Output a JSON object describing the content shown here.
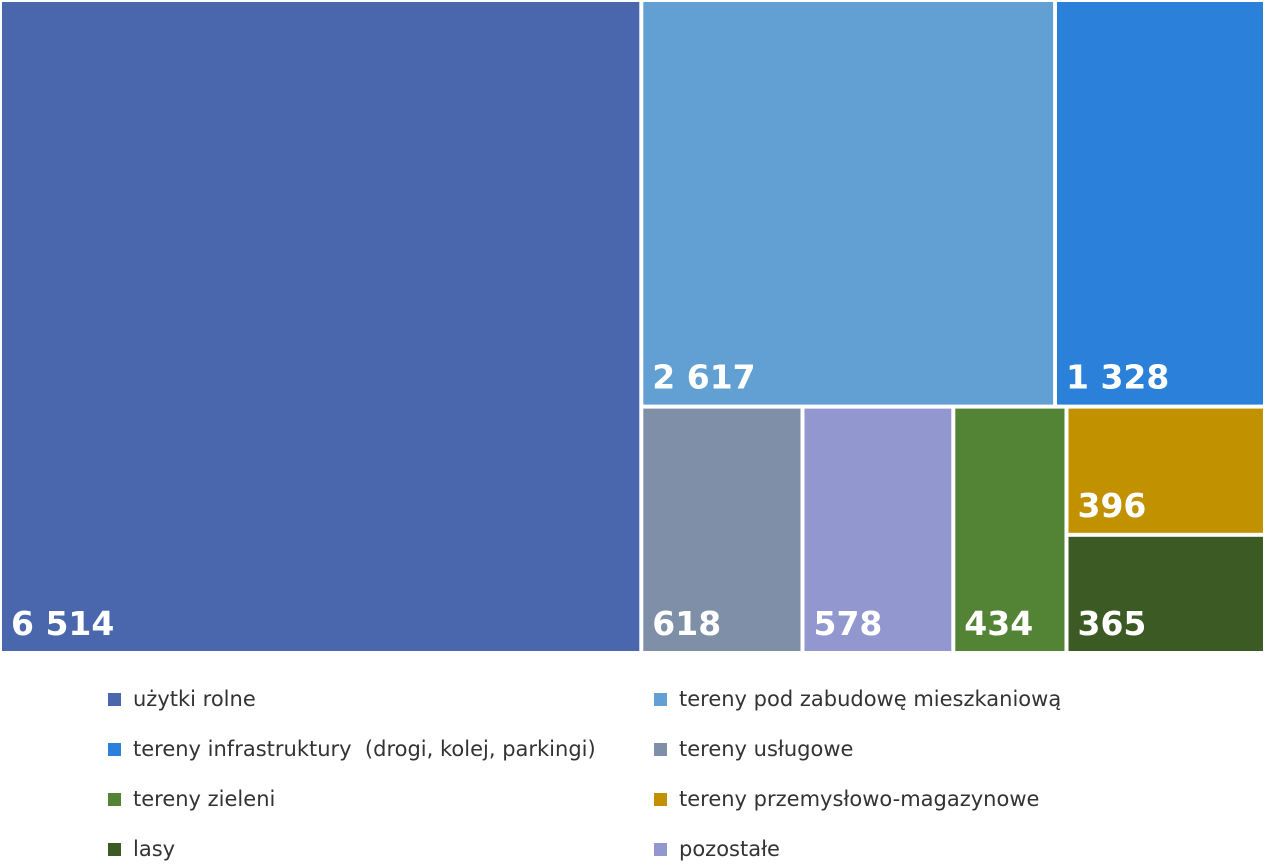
{
  "chart_data": {
    "type": "treemap",
    "series": [
      {
        "name": "użytki rolne",
        "value": 6514,
        "value_label": "6 514",
        "color": "#4A67AE"
      },
      {
        "name": "tereny pod zabudowę mieszkaniową",
        "value": 2617,
        "value_label": "2 617",
        "color": "#629FD3"
      },
      {
        "name": "tereny infrastruktury  (drogi, kolej, parkingi)",
        "value": 1328,
        "value_label": "1 328",
        "color": "#2B80D9"
      },
      {
        "name": "tereny usługowe",
        "value": 618,
        "value_label": "618",
        "color": "#7F8FA8"
      },
      {
        "name": "pozostałe",
        "value": 578,
        "value_label": "578",
        "color": "#9298CF"
      },
      {
        "name": "tereny zieleni",
        "value": 434,
        "value_label": "434",
        "color": "#538435"
      },
      {
        "name": "tereny przemysłowo-magazynowe",
        "value": 396,
        "value_label": "396",
        "color": "#C19100"
      },
      {
        "name": "lasy",
        "value": 365,
        "value_label": "365",
        "color": "#3C5B24"
      }
    ],
    "legend": {
      "placement": "bottom",
      "order": [
        "użytki rolne",
        "tereny pod zabudowę mieszkaniową",
        "tereny infrastruktury  (drogi, kolej, parkingi)",
        "tereny usługowe",
        "tereny zieleni",
        "tereny przemysłowo-magazynowe",
        "lasy",
        "pozostałe"
      ]
    }
  }
}
